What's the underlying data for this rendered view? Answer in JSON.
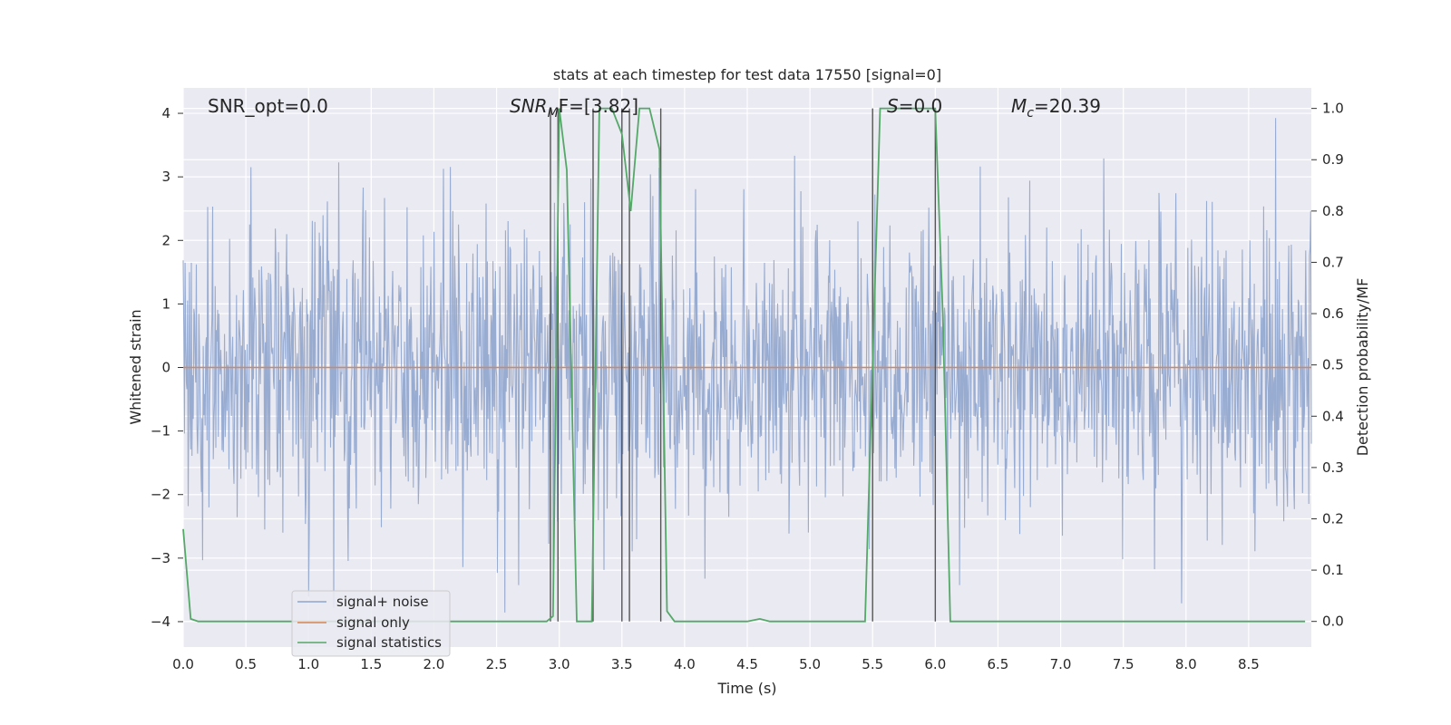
{
  "chart_data": {
    "type": "line",
    "title": "stats at each timestep for test data 17550 [signal=0]",
    "xlabel": "Time (s)",
    "ylabel": "Whitened strain",
    "ylabel_right": "Detection probability/MF",
    "xlim": [
      0.0,
      9.0
    ],
    "ylim": [
      -4.4,
      4.4
    ],
    "ylim_right": [
      -0.05,
      1.04
    ],
    "x_ticks": [
      0.0,
      0.5,
      1.0,
      1.5,
      2.0,
      2.5,
      3.0,
      3.5,
      4.0,
      4.5,
      5.0,
      5.5,
      6.0,
      6.5,
      7.0,
      7.5,
      8.0,
      8.5
    ],
    "x_tick_labels": [
      "0.0",
      "0.5",
      "1.0",
      "1.5",
      "2.0",
      "2.5",
      "3.0",
      "3.5",
      "4.0",
      "4.5",
      "5.0",
      "5.5",
      "6.0",
      "6.5",
      "7.0",
      "7.5",
      "8.0",
      "8.5"
    ],
    "y_ticks": [
      -4,
      -3,
      -2,
      -1,
      0,
      1,
      2,
      3,
      4
    ],
    "y_tick_labels": [
      "−4",
      "−3",
      "−2",
      "−1",
      "0",
      "1",
      "2",
      "3",
      "4"
    ],
    "y_right_ticks": [
      0.0,
      0.1,
      0.2,
      0.3,
      0.4,
      0.5,
      0.6,
      0.7,
      0.8,
      0.9,
      1.0
    ],
    "y_right_tick_labels": [
      "0.0",
      "0.1",
      "0.2",
      "0.3",
      "0.4",
      "0.5",
      "0.6",
      "0.7",
      "0.8",
      "0.9",
      "1.0"
    ],
    "grid": true,
    "legend_position": "lower-left",
    "annotations": {
      "snr_opt": "SNR_opt=0.0",
      "snr_mf_base": "SNR",
      "snr_mf_sub": "M",
      "snr_mf_rest": "F=[3.82]",
      "s_label": "S",
      "s_rest": "=0.0",
      "mc_base": "M",
      "mc_sub": "c",
      "mc_rest": "=20.39"
    },
    "series": [
      {
        "name": "signal+ noise",
        "color": "#8fa4cc",
        "axis": "left",
        "kind": "noise",
        "x_range": [
          0.0,
          9.0
        ],
        "amplitude_envelope": 4.0
      },
      {
        "name": "signal only",
        "color": "#dd8452",
        "axis": "left",
        "x": [
          0.0,
          9.0
        ],
        "y": [
          0.0,
          0.0
        ]
      },
      {
        "name": "signal statistics",
        "color": "#55a868",
        "axis": "right",
        "x": [
          0.0,
          0.06,
          0.12,
          2.9,
          2.95,
          3.0,
          3.06,
          3.14,
          3.26,
          3.32,
          3.42,
          3.5,
          3.57,
          3.64,
          3.72,
          3.8,
          3.86,
          3.92,
          4.5,
          4.6,
          4.68,
          5.44,
          5.5,
          5.56,
          6.0,
          6.06,
          6.12,
          8.95
        ],
        "y": [
          0.18,
          0.005,
          0.0,
          0.0,
          0.01,
          1.0,
          0.88,
          0.0,
          0.0,
          1.0,
          1.0,
          0.95,
          0.8,
          1.0,
          1.0,
          0.92,
          0.02,
          0.0,
          0.0,
          0.005,
          0.0,
          0.0,
          0.5,
          1.0,
          1.0,
          0.6,
          0.0,
          0.0
        ]
      }
    ],
    "vertical_lines_x": [
      2.93,
      2.99,
      3.27,
      3.5,
      3.56,
      3.81,
      5.5,
      6.0
    ]
  }
}
